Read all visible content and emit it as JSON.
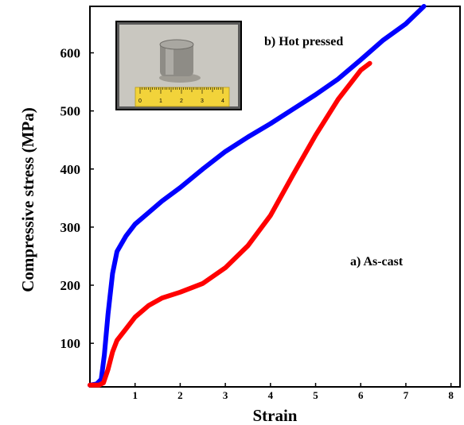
{
  "chart_data": {
    "type": "line",
    "xlabel": "Strain",
    "ylabel": "Compressive stress (MPa)",
    "xlim": [
      0,
      8.2
    ],
    "ylim": [
      25,
      680
    ],
    "xticks": [
      1,
      2,
      3,
      4,
      5,
      6,
      7,
      8
    ],
    "yticks": [
      100,
      200,
      300,
      400,
      500,
      600
    ],
    "grid": false,
    "series": [
      {
        "name": "b) Hot pressed",
        "color": "#0000ff",
        "x": [
          0,
          0.15,
          0.25,
          0.32,
          0.4,
          0.5,
          0.6,
          0.8,
          1.0,
          1.3,
          1.6,
          2.0,
          2.5,
          3.0,
          3.5,
          4.0,
          4.5,
          5.0,
          5.5,
          6.0,
          6.5,
          7.0,
          7.4
        ],
        "y": [
          28,
          30,
          38,
          80,
          150,
          220,
          258,
          285,
          305,
          325,
          345,
          368,
          400,
          430,
          455,
          478,
          503,
          528,
          555,
          588,
          622,
          650,
          680
        ]
      },
      {
        "name": "a) As-cast",
        "color": "#ff0000",
        "x": [
          0,
          0.2,
          0.3,
          0.4,
          0.5,
          0.6,
          0.8,
          1.0,
          1.3,
          1.6,
          2.0,
          2.5,
          3.0,
          3.5,
          4.0,
          4.5,
          5.0,
          5.5,
          6.0,
          6.2
        ],
        "y": [
          28,
          28,
          32,
          55,
          85,
          105,
          125,
          145,
          165,
          178,
          188,
          203,
          230,
          268,
          320,
          390,
          458,
          520,
          570,
          582
        ]
      }
    ],
    "annotations": [
      {
        "text": "b) Hot pressed",
        "x": 4.1,
        "y": 650
      },
      {
        "text": "a) As-cast",
        "x": 6.0,
        "y": 268
      }
    ],
    "inset": {
      "description": "Photo of hot-pressed cylindrical sample next to ruler",
      "ruler_labels": [
        "0",
        "1",
        "2",
        "3",
        "4"
      ],
      "ruler_color": "#f2d33a"
    }
  }
}
